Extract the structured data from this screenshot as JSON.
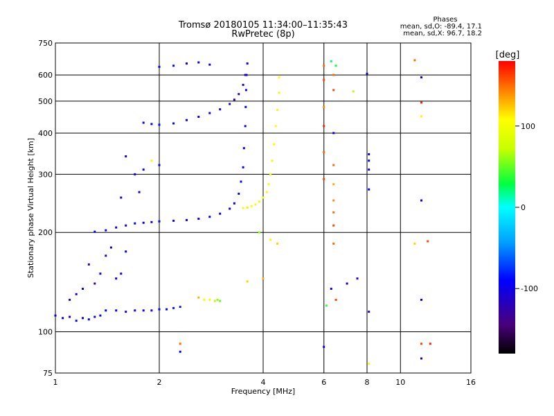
{
  "chart_data": {
    "type": "scatter",
    "title": "Tromsø 20180105 11:34:00–11:35:43",
    "subtitle": "RwPretec (8p)",
    "xlabel": "Frequency [MHz]",
    "ylabel": "Stationary phase Virtual Height [km]",
    "xscale": "log",
    "yscale": "log",
    "xlim": [
      1,
      16
    ],
    "ylim": [
      75,
      750
    ],
    "x_ticks": [
      1,
      2,
      4,
      6,
      8,
      10,
      16
    ],
    "x_tick_labels": [
      "1",
      "2",
      "4",
      "6",
      "8",
      "10",
      "16"
    ],
    "y_ticks": [
      75,
      100,
      200,
      300,
      400,
      500,
      600,
      750
    ],
    "y_tick_labels": [
      "75",
      "100",
      "200",
      "300",
      "400",
      "500",
      "600",
      "750"
    ],
    "grid": true,
    "phase_info": {
      "title": "Phases",
      "line_o": "mean, sd,O: -89.4, 17.1",
      "line_x": "mean, sd,X:  96.7, 18.2"
    },
    "colorbar": {
      "label": "[deg]",
      "range": [
        -180,
        180
      ],
      "ticks": [
        100,
        0,
        -100
      ],
      "tick_labels": [
        "100",
        "0",
        "-100"
      ],
      "colormap": "rainbow"
    },
    "series": [
      {
        "points": [
          [
            1.0,
            112,
            -95
          ],
          [
            1.05,
            110,
            -90
          ],
          [
            1.1,
            111,
            -100
          ],
          [
            1.15,
            108,
            -85
          ],
          [
            1.2,
            110,
            -95
          ],
          [
            1.25,
            109,
            -90
          ],
          [
            1.3,
            111,
            -100
          ],
          [
            1.35,
            112,
            -95
          ],
          [
            1.4,
            116,
            -90
          ],
          [
            1.5,
            116,
            -95
          ],
          [
            1.6,
            115,
            -100
          ],
          [
            1.7,
            116,
            -90
          ],
          [
            1.8,
            116,
            -95
          ],
          [
            1.9,
            116,
            -100
          ],
          [
            2.0,
            117,
            -90
          ],
          [
            2.1,
            117,
            -95
          ],
          [
            2.2,
            118,
            -85
          ],
          [
            2.3,
            119,
            -80
          ]
        ]
      },
      {
        "points": [
          [
            1.3,
            201,
            -95
          ],
          [
            1.4,
            203,
            -90
          ],
          [
            1.5,
            207,
            -100
          ],
          [
            1.6,
            210,
            -95
          ],
          [
            1.7,
            213,
            -90
          ],
          [
            1.8,
            214,
            -95
          ],
          [
            1.9,
            215,
            -100
          ],
          [
            2.0,
            216,
            -90
          ],
          [
            2.2,
            217,
            -95
          ],
          [
            2.4,
            218,
            -90
          ],
          [
            2.6,
            220,
            -95
          ],
          [
            2.8,
            223,
            -90
          ],
          [
            3.0,
            228,
            -100
          ],
          [
            3.2,
            236,
            -95
          ],
          [
            3.3,
            245,
            -90
          ],
          [
            3.4,
            262,
            -95
          ],
          [
            3.45,
            285,
            -100
          ],
          [
            3.5,
            315,
            -90
          ],
          [
            3.52,
            360,
            -95
          ],
          [
            3.55,
            420,
            -100
          ],
          [
            3.56,
            480,
            -90
          ],
          [
            3.57,
            540,
            -95
          ],
          [
            3.58,
            600,
            -100
          ],
          [
            3.6,
            650,
            -95
          ]
        ]
      },
      {
        "points": [
          [
            1.8,
            430,
            -95
          ],
          [
            1.9,
            426,
            -90
          ],
          [
            2.0,
            424,
            -95
          ],
          [
            2.2,
            428,
            -100
          ],
          [
            2.4,
            438,
            -90
          ],
          [
            2.6,
            448,
            -95
          ],
          [
            2.8,
            460,
            -95
          ],
          [
            3.0,
            472,
            -100
          ],
          [
            3.2,
            490,
            -120
          ],
          [
            3.3,
            505,
            -125
          ],
          [
            3.4,
            525,
            -120
          ],
          [
            3.5,
            560,
            -115
          ],
          [
            3.55,
            600,
            -110
          ]
        ]
      },
      {
        "points": [
          [
            2.0,
            635,
            -95
          ],
          [
            2.2,
            640,
            -90
          ],
          [
            2.4,
            650,
            -95
          ],
          [
            2.6,
            655,
            -100
          ],
          [
            2.8,
            645,
            -95
          ]
        ]
      },
      {
        "points": [
          [
            3.5,
            237,
            110
          ],
          [
            3.6,
            238,
            115
          ],
          [
            3.7,
            240,
            105
          ],
          [
            3.8,
            243,
            100
          ],
          [
            3.9,
            248,
            110
          ],
          [
            4.0,
            255,
            105
          ],
          [
            4.1,
            265,
            110
          ],
          [
            4.15,
            280,
            100
          ],
          [
            4.2,
            300,
            105
          ],
          [
            4.25,
            330,
            95
          ],
          [
            4.3,
            370,
            100
          ],
          [
            4.35,
            420,
            105
          ],
          [
            4.4,
            470,
            110
          ],
          [
            4.45,
            530,
            100
          ],
          [
            4.45,
            590,
            105
          ]
        ]
      },
      {
        "points": [
          [
            1.25,
            160,
            -110
          ],
          [
            1.35,
            150,
            -90
          ],
          [
            1.4,
            170,
            -120
          ],
          [
            1.45,
            180,
            -100
          ],
          [
            1.3,
            140,
            -130
          ],
          [
            1.2,
            135,
            -100
          ],
          [
            1.5,
            145,
            -95
          ],
          [
            1.15,
            130,
            -110
          ],
          [
            1.1,
            125,
            -120
          ],
          [
            1.55,
            150,
            -100
          ],
          [
            1.6,
            175,
            -90
          ]
        ]
      },
      {
        "points": [
          [
            1.7,
            300,
            -95
          ],
          [
            1.8,
            310,
            -100
          ],
          [
            1.9,
            330,
            110
          ],
          [
            2.0,
            320,
            -95
          ],
          [
            1.6,
            340,
            -100
          ],
          [
            1.55,
            255,
            -95
          ],
          [
            1.75,
            265,
            -100
          ]
        ]
      },
      {
        "points": [
          [
            2.7,
            125,
            110
          ],
          [
            2.8,
            125,
            100
          ],
          [
            2.9,
            124,
            70
          ],
          [
            2.95,
            125,
            60
          ],
          [
            3.0,
            124,
            50
          ],
          [
            2.6,
            127,
            130
          ]
        ]
      },
      {
        "points": [
          [
            6.0,
            640,
            150
          ],
          [
            6.0,
            580,
            160
          ],
          [
            6.0,
            480,
            140
          ],
          [
            6.0,
            420,
            170
          ],
          [
            6.0,
            350,
            150
          ],
          [
            6.0,
            290,
            160
          ],
          [
            6.3,
            660,
            20
          ],
          [
            6.5,
            640,
            30
          ],
          [
            6.4,
            600,
            150
          ],
          [
            6.4,
            540,
            160
          ],
          [
            6.4,
            400,
            -100
          ],
          [
            6.4,
            320,
            150
          ],
          [
            6.4,
            280,
            130
          ],
          [
            6.4,
            250,
            140
          ],
          [
            6.4,
            230,
            150
          ],
          [
            6.4,
            210,
            160
          ],
          [
            6.4,
            185,
            150
          ],
          [
            6.3,
            135,
            -100
          ],
          [
            6.5,
            125,
            160
          ],
          [
            6.1,
            120,
            40
          ],
          [
            6.0,
            90,
            -100
          ],
          [
            7.3,
            535,
            70
          ],
          [
            7.0,
            140,
            -100
          ],
          [
            7.5,
            145,
            -120
          ],
          [
            8.0,
            605,
            -100
          ],
          [
            8.1,
            345,
            -100
          ],
          [
            8.1,
            330,
            -95
          ],
          [
            8.1,
            310,
            -100
          ],
          [
            8.1,
            270,
            -90
          ],
          [
            8.1,
            115,
            -120
          ],
          [
            8.1,
            80,
            110
          ],
          [
            11.0,
            665,
            150
          ],
          [
            11.5,
            590,
            -100
          ],
          [
            11.5,
            495,
            170
          ],
          [
            11.5,
            450,
            110
          ],
          [
            11.5,
            250,
            -100
          ],
          [
            11.0,
            185,
            120
          ],
          [
            12.0,
            188,
            160
          ],
          [
            11.5,
            125,
            -100
          ],
          [
            11.5,
            92,
            160
          ],
          [
            12.2,
            92,
            170
          ],
          [
            11.5,
            83,
            -110
          ],
          [
            4.2,
            190,
            110
          ],
          [
            4.4,
            185,
            120
          ],
          [
            3.9,
            200,
            60
          ],
          [
            3.6,
            142,
            120
          ],
          [
            4.0,
            145,
            130
          ],
          [
            2.3,
            92,
            150
          ],
          [
            2.3,
            87,
            -100
          ]
        ]
      }
    ]
  }
}
